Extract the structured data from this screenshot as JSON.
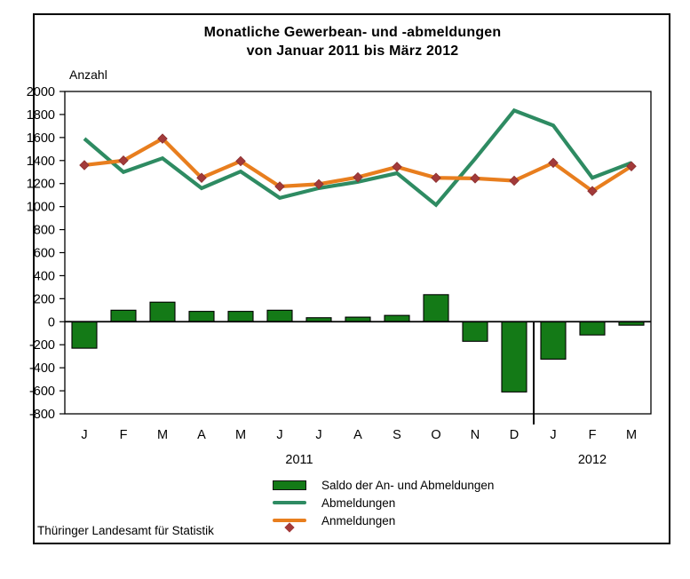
{
  "title": {
    "line1": "Monatliche Gewerbean- und -abmeldungen",
    "line2": "von Januar 2011 bis März 2012"
  },
  "axis_title": "Anzahl",
  "footer": "Thüringer Landesamt für Statistik",
  "colors": {
    "saldo_bar": "#147a17",
    "abmeldungen_line": "#2e8b62",
    "anmeldungen_line": "#e87e1e",
    "anmeldungen_marker": "#a23a3a",
    "axis": "#000000"
  },
  "legend": {
    "items": [
      {
        "label": "Saldo der An- und Abmeldungen",
        "swatch": "bar"
      },
      {
        "label": "Abmeldungen",
        "swatch": "line"
      },
      {
        "label": "Anmeldungen",
        "swatch": "line-marker"
      }
    ]
  },
  "chart_data": {
    "type": "bar",
    "subtype": "combo-bar-and-lines",
    "title": "Monatliche Gewerbean- und -abmeldungen von Januar 2011 bis März 2012",
    "xlabel": "",
    "ylabel": "Anzahl",
    "categories": [
      "J",
      "F",
      "M",
      "A",
      "M",
      "J",
      "J",
      "A",
      "S",
      "O",
      "N",
      "D",
      "J",
      "F",
      "M"
    ],
    "year_groups": [
      {
        "label": "2011",
        "month_count": 12
      },
      {
        "label": "2012",
        "month_count": 3
      }
    ],
    "series": [
      {
        "name": "Saldo der An- und Abmeldungen",
        "type": "bar",
        "values": [
          -230,
          100,
          170,
          90,
          90,
          100,
          35,
          40,
          55,
          235,
          -170,
          -610,
          -325,
          -115,
          -30
        ]
      },
      {
        "name": "Abmeldungen",
        "type": "line",
        "values": [
          1590,
          1300,
          1420,
          1160,
          1305,
          1075,
          1160,
          1215,
          1290,
          1015,
          1415,
          1835,
          1705,
          1250,
          1380
        ]
      },
      {
        "name": "Anmeldungen",
        "type": "line",
        "marker": "diamond",
        "values": [
          1360,
          1400,
          1590,
          1250,
          1395,
          1175,
          1195,
          1255,
          1345,
          1250,
          1245,
          1225,
          1380,
          1135,
          1350
        ]
      }
    ],
    "ylim": [
      -800,
      2000
    ],
    "yticks": [
      2000,
      1800,
      1600,
      1400,
      1200,
      1000,
      800,
      600,
      400,
      200,
      0,
      -200,
      -400,
      -600,
      -800
    ],
    "grid": false,
    "zero_line": true,
    "year_separator_after_index": 11,
    "legend_position": "bottom-center"
  }
}
